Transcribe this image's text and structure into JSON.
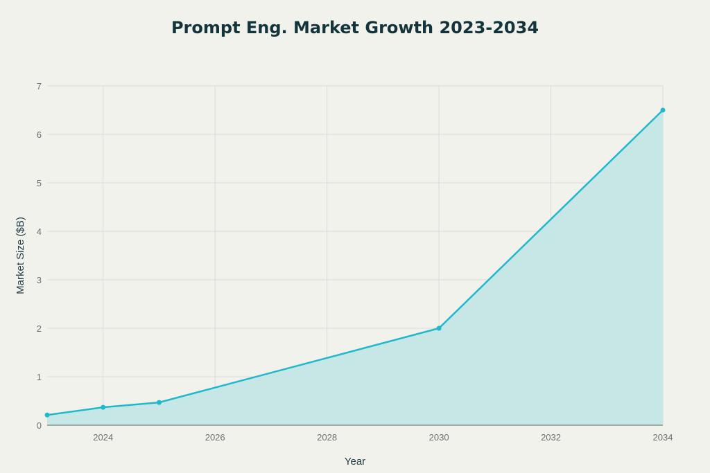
{
  "chart_data": {
    "type": "area",
    "title": "Prompt Eng. Market Growth 2023-2034",
    "xlabel": "Year",
    "ylabel": "Market Size ($B)",
    "x": [
      2023,
      2024,
      2025,
      2030,
      2034
    ],
    "values": [
      0.21,
      0.37,
      0.47,
      2.0,
      6.5
    ],
    "xlim": [
      2023,
      2034
    ],
    "ylim": [
      0,
      7
    ],
    "xticks": [
      "2024",
      "2026",
      "2028",
      "2030",
      "2032",
      "2034"
    ],
    "yticks": [
      "0",
      "1",
      "2",
      "3",
      "4",
      "5",
      "6",
      "7"
    ],
    "grid": true,
    "legend": "none",
    "colors": {
      "line": "#1fb8cd",
      "fill": "#c6e7e6",
      "background": "#f2f2ed"
    }
  }
}
